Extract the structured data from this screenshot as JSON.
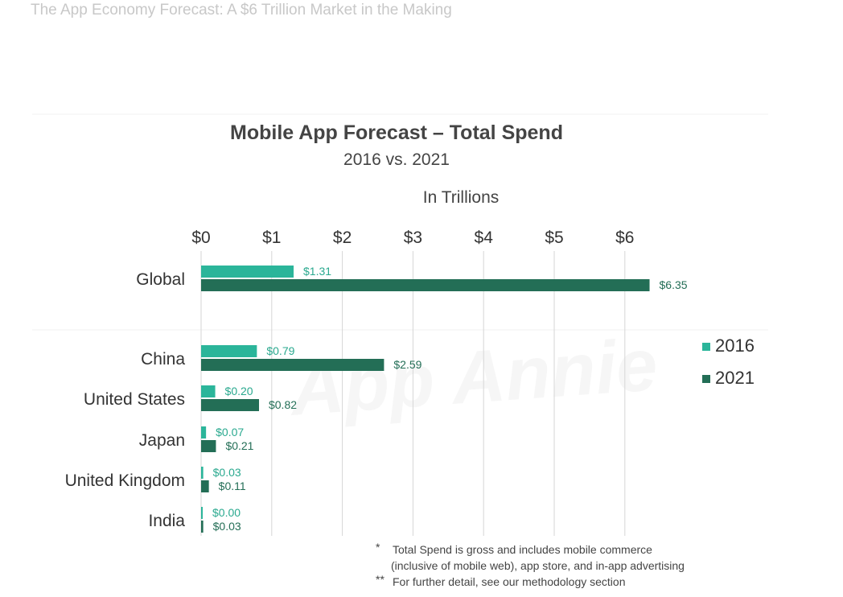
{
  "page": {
    "header": "The App Economy Forecast: A $6 Trillion Market in the Making",
    "watermark": "App Annie",
    "footnotes": [
      {
        "mark": "*",
        "lines": [
          "Total Spend is gross and includes mobile commerce",
          "(inclusive of mobile web), app store, and in-app advertising"
        ]
      },
      {
        "mark": "**",
        "lines": [
          "For further detail, see our methodology section"
        ]
      }
    ]
  },
  "colors": {
    "series_2016": "#2bb59a",
    "series_2021": "#236e56",
    "label_2016": "#2aa98f",
    "label_2021": "#236e56"
  },
  "chart_data": {
    "type": "bar",
    "orientation": "horizontal",
    "title": "Mobile App Forecast – Total Spend",
    "subtitle": "2016 vs. 2021",
    "unit_label": "In Trillions",
    "xlim": [
      0,
      6.5
    ],
    "x_ticks": [
      0,
      1,
      2,
      3,
      4,
      5,
      6
    ],
    "x_tick_labels": [
      "$0",
      "$1",
      "$2",
      "$3",
      "$4",
      "$5",
      "$6"
    ],
    "x_axis_position": "top",
    "grid": true,
    "legend_position": "right",
    "categories": [
      "Global",
      "China",
      "United States",
      "Japan",
      "United Kingdom",
      "India"
    ],
    "series": [
      {
        "name": "2016",
        "values": [
          1.31,
          0.79,
          0.2,
          0.07,
          0.03,
          0.0
        ],
        "labels": [
          "$1.31",
          "$0.79",
          "$0.20",
          "$0.07",
          "$0.03",
          "$0.00"
        ]
      },
      {
        "name": "2021",
        "values": [
          6.35,
          2.59,
          0.82,
          0.21,
          0.11,
          0.03
        ],
        "labels": [
          "$6.35",
          "$2.59",
          "$0.82",
          "$0.21",
          "$0.11",
          "$0.03"
        ]
      }
    ]
  }
}
